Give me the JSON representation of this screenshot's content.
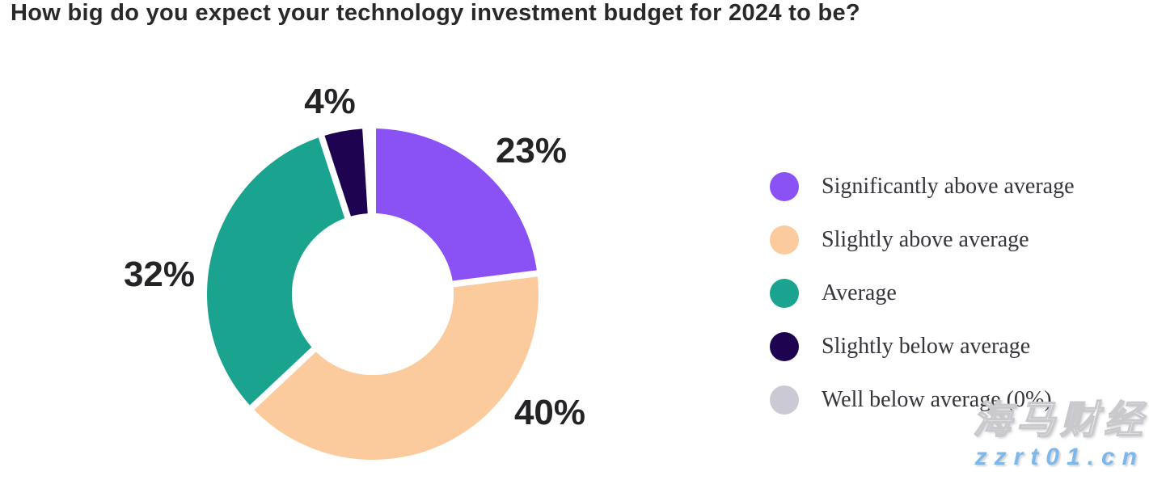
{
  "page": {
    "title": "How big do you expect your technology investment budget for 2024 to be?"
  },
  "chart_data": {
    "type": "pie",
    "subtype": "donut",
    "title": "How big do you expect your technology investment budget for 2024 to be?",
    "categories": [
      "Significantly above average",
      "Slightly above average",
      "Average",
      "Slightly below average",
      "Well below average"
    ],
    "values": [
      23,
      40,
      32,
      4,
      0
    ],
    "unit": "%",
    "colors": [
      "#8A51F5",
      "#FBCB9D",
      "#1AA48F",
      "#1E0350",
      "#CBC9D4"
    ],
    "start_angle_deg": 0,
    "direction": "clockwise",
    "inner_radius_ratio": 0.49,
    "slice_gap_color": "#ffffff",
    "slice_labels": [
      "23%",
      "40%",
      "32%",
      "4%"
    ],
    "legend_position": "right"
  },
  "callouts": {
    "p4": "4%",
    "p23": "23%",
    "p32": "32%",
    "p40": "40%"
  },
  "legend": {
    "items": [
      {
        "label": "Significantly above average",
        "color": "#8A51F5"
      },
      {
        "label": "Slightly above average",
        "color": "#FBCB9D"
      },
      {
        "label": "Average",
        "color": "#1AA48F"
      },
      {
        "label": "Slightly below average",
        "color": "#1E0350"
      },
      {
        "label": "Well below average (0%)",
        "color": "#CBC9D4"
      }
    ]
  },
  "watermark": {
    "brand": "海马财经",
    "site": "zzrt01.cn"
  }
}
